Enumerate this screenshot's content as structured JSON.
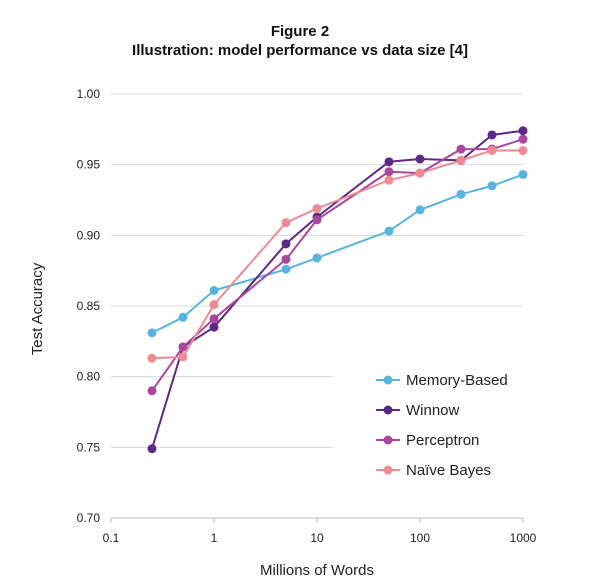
{
  "chart_data": {
    "type": "line",
    "title": "Figure 2",
    "subtitle": "Illustration: model performance vs data size [4]",
    "xlabel": "Millions of Words",
    "ylabel": "Test Accuracy",
    "xscale": "log",
    "xlim": [
      0.1,
      1000
    ],
    "ylim": [
      0.7,
      1.0
    ],
    "x_ticks": [
      "0.1",
      "1",
      "10",
      "100",
      "1000"
    ],
    "y_ticks": [
      "0.70",
      "0.75",
      "0.80",
      "0.85",
      "0.90",
      "0.95",
      "1.00"
    ],
    "grid": "horizontal",
    "legend_position": "bottom-right",
    "series": [
      {
        "name": "Memory-Based",
        "color": "#5ab4e0",
        "x": [
          0.25,
          0.5,
          1,
          5,
          10,
          50,
          100,
          250,
          500,
          1000
        ],
        "values": [
          0.831,
          0.842,
          0.861,
          0.876,
          0.884,
          0.903,
          0.918,
          0.929,
          0.935,
          0.943
        ]
      },
      {
        "name": "Winnow",
        "color": "#5b2a86",
        "x": [
          0.25,
          0.5,
          1,
          5,
          10,
          50,
          100,
          250,
          500,
          1000
        ],
        "values": [
          0.749,
          0.821,
          0.835,
          0.894,
          0.913,
          0.952,
          0.954,
          0.953,
          0.971,
          0.974
        ]
      },
      {
        "name": "Perceptron",
        "color": "#a8479d",
        "x": [
          0.25,
          0.5,
          1,
          5,
          10,
          50,
          100,
          250,
          500,
          1000
        ],
        "values": [
          0.79,
          0.821,
          0.841,
          0.883,
          0.911,
          0.945,
          0.944,
          0.961,
          0.961,
          0.968
        ]
      },
      {
        "name": "Naïve Bayes",
        "color": "#ef8a93",
        "x": [
          0.25,
          0.5,
          1,
          5,
          10,
          50,
          100,
          250,
          500,
          1000
        ],
        "values": [
          0.813,
          0.814,
          0.851,
          0.909,
          0.919,
          0.939,
          0.944,
          0.953,
          0.96,
          0.96
        ]
      }
    ]
  }
}
